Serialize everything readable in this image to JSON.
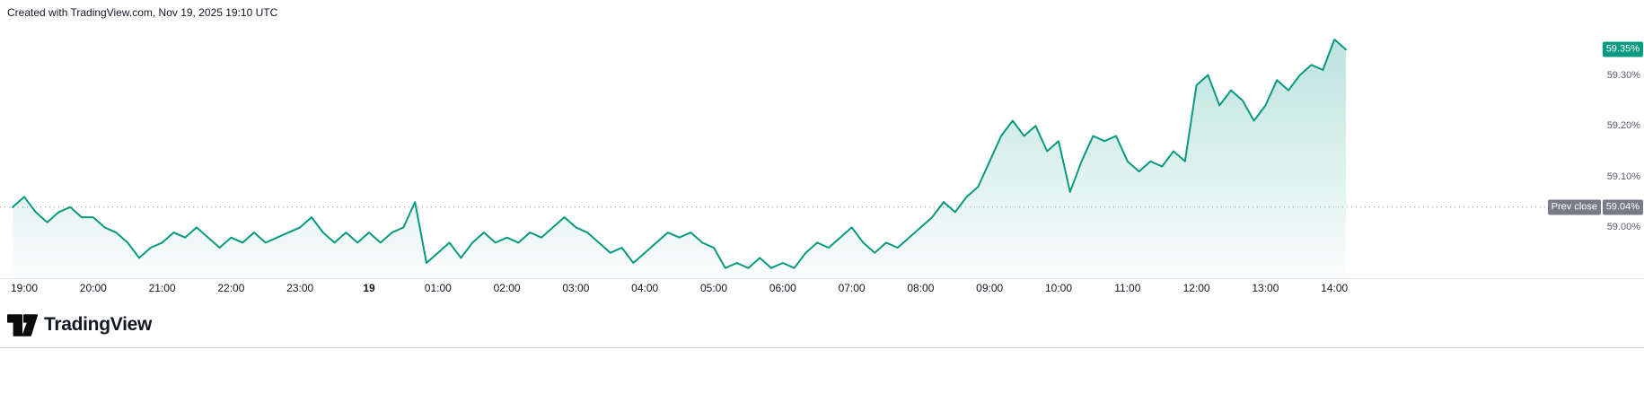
{
  "attribution": "Created with TradingView.com, Nov 19, 2025 19:10 UTC",
  "footer": {
    "brand": "TradingView"
  },
  "colors": {
    "accent": "#089981",
    "area_fill_top_opacity": "0.30",
    "area_fill_bottom_opacity": "0.02",
    "current_badge_bg": "#089981",
    "prev_close_badge_bg": "#787b86",
    "price_tick_text": "#5a5e69",
    "time_label_text": "#131722",
    "dotted_line": "#9598a1",
    "axis_line": "#e0e3eb",
    "divider": "#d1d4dc",
    "attribution_text": "#131722"
  },
  "price_axis": {
    "current": {
      "label": "59.35%",
      "value": 59.35
    },
    "prev_close": {
      "label": "Prev close",
      "price_label": "59.04%",
      "value": 59.04
    },
    "ticks": [
      {
        "label": "59.30%",
        "value": 59.3
      },
      {
        "label": "59.20%",
        "value": 59.2
      },
      {
        "label": "59.10%",
        "value": 59.1
      },
      {
        "label": "59.00%",
        "value": 59.0
      }
    ]
  },
  "time_axis": {
    "labels": [
      {
        "text": "19:00",
        "hour": 0
      },
      {
        "text": "20:00",
        "hour": 1
      },
      {
        "text": "21:00",
        "hour": 2
      },
      {
        "text": "22:00",
        "hour": 3
      },
      {
        "text": "23:00",
        "hour": 4
      },
      {
        "text": "19",
        "hour": 5,
        "bold": true
      },
      {
        "text": "01:00",
        "hour": 6
      },
      {
        "text": "02:00",
        "hour": 7
      },
      {
        "text": "03:00",
        "hour": 8
      },
      {
        "text": "04:00",
        "hour": 9
      },
      {
        "text": "05:00",
        "hour": 10
      },
      {
        "text": "06:00",
        "hour": 11
      },
      {
        "text": "07:00",
        "hour": 12
      },
      {
        "text": "08:00",
        "hour": 13
      },
      {
        "text": "09:00",
        "hour": 14
      },
      {
        "text": "10:00",
        "hour": 15
      },
      {
        "text": "11:00",
        "hour": 16
      },
      {
        "text": "12:00",
        "hour": 17
      },
      {
        "text": "13:00",
        "hour": 18
      },
      {
        "text": "14:00",
        "hour": 19
      }
    ]
  },
  "chart_data": {
    "type": "area",
    "series_name": "yield-percent",
    "unit": "%",
    "title": "",
    "xlabel": "",
    "ylabel": "",
    "x_first_label": "19:00",
    "start_offset_minutes": -10,
    "x_interval_minutes": 10,
    "x_tick_labels": [
      "19:00",
      "20:00",
      "21:00",
      "22:00",
      "23:00",
      "19",
      "01:00",
      "02:00",
      "03:00",
      "04:00",
      "05:00",
      "06:00",
      "07:00",
      "08:00",
      "09:00",
      "10:00",
      "11:00",
      "12:00",
      "13:00",
      "14:00"
    ],
    "y_ticks": [
      59.0,
      59.1,
      59.2,
      59.3
    ],
    "ylim": [
      58.9,
      59.43
    ],
    "grid": false,
    "legend": false,
    "prev_close": 59.04,
    "last_value": 59.35,
    "values": [
      59.04,
      59.06,
      59.03,
      59.01,
      59.03,
      59.04,
      59.02,
      59.02,
      59.0,
      58.99,
      58.97,
      58.94,
      58.96,
      58.97,
      58.99,
      58.98,
      59.0,
      58.98,
      58.96,
      58.98,
      58.97,
      58.99,
      58.97,
      58.98,
      58.99,
      59.0,
      59.02,
      58.99,
      58.97,
      58.99,
      58.97,
      58.99,
      58.97,
      58.99,
      59.0,
      59.05,
      58.93,
      58.95,
      58.97,
      58.94,
      58.97,
      58.99,
      58.97,
      58.98,
      58.97,
      58.99,
      58.98,
      59.0,
      59.02,
      59.0,
      58.99,
      58.97,
      58.95,
      58.96,
      58.93,
      58.95,
      58.97,
      58.99,
      58.98,
      58.99,
      58.97,
      58.96,
      58.92,
      58.93,
      58.92,
      58.94,
      58.92,
      58.93,
      58.92,
      58.95,
      58.97,
      58.96,
      58.98,
      59.0,
      58.97,
      58.95,
      58.97,
      58.96,
      58.98,
      59.0,
      59.02,
      59.05,
      59.03,
      59.06,
      59.08,
      59.13,
      59.18,
      59.21,
      59.18,
      59.2,
      59.15,
      59.17,
      59.07,
      59.13,
      59.18,
      59.17,
      59.18,
      59.13,
      59.11,
      59.13,
      59.12,
      59.15,
      59.13,
      59.28,
      59.3,
      59.24,
      59.27,
      59.25,
      59.21,
      59.24,
      59.29,
      59.27,
      59.3,
      59.32,
      59.31,
      59.37,
      59.35
    ]
  }
}
